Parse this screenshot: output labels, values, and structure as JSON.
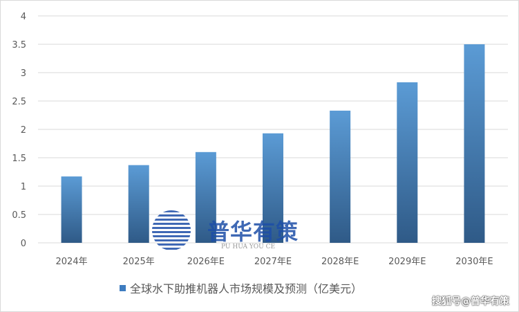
{
  "chart_data": {
    "type": "bar",
    "categories": [
      "2024年",
      "2025年",
      "2026年E",
      "2027年E",
      "2028年E",
      "2029年E",
      "2030年E"
    ],
    "series": [
      {
        "name": "全球水下助推机器人市场规模及预测（亿美元）",
        "values": [
          1.17,
          1.37,
          1.6,
          1.93,
          2.33,
          2.83,
          3.5
        ]
      }
    ],
    "ylim": [
      0,
      4
    ],
    "yticks": [
      "0",
      "0.5",
      "1",
      "1.5",
      "2",
      "2.5",
      "3",
      "3.5",
      "4"
    ],
    "grid": true,
    "legend": "bottom",
    "colors": {
      "bar_top": "#5b9bd5",
      "bar_bottom": "#2f5a87",
      "grid": "#d9d9d9"
    }
  },
  "watermark": {
    "logo_text": "普华有策",
    "logo_sub": "PU HUA YOU CE",
    "credit": "搜狐号@普华有策"
  }
}
